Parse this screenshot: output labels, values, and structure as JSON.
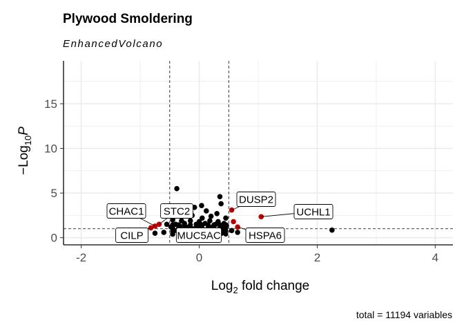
{
  "chart_data": {
    "type": "scatter",
    "title": "Plywood Smoldering",
    "subtitle": "EnhancedVolcano",
    "caption": "total = 11194 variables",
    "xlabel_main": "Log",
    "xlabel_sub": "2",
    "xlabel_tail": " fold change",
    "ylabel_pre": "−Log",
    "ylabel_sub": "10",
    "ylabel_var": "P",
    "xlim": [
      -2.3,
      4.3
    ],
    "ylim": [
      -0.8,
      19.8
    ],
    "x_ticks": [
      -2,
      0,
      2,
      4
    ],
    "x_tick_labels": [
      "-2",
      "0",
      "2",
      "4"
    ],
    "y_ticks": [
      0,
      5,
      10,
      15
    ],
    "y_tick_labels": [
      "0",
      "5",
      "10",
      "15"
    ],
    "fc_cutoff": 0.5,
    "p_cutoff_log": 1.0,
    "grid": true,
    "colors": {
      "ns": "#000000",
      "sig": "#c00000",
      "grid": "#ebebeb",
      "cutoff": "#000000"
    },
    "points_ns": [
      [
        -0.38,
        5.5
      ],
      [
        0.04,
        3.6
      ],
      [
        -0.08,
        3.4
      ],
      [
        0.12,
        3.0
      ],
      [
        -0.2,
        2.7
      ],
      [
        0.3,
        2.7
      ],
      [
        0.45,
        2.2
      ],
      [
        0.37,
        3.8
      ],
      [
        0.35,
        4.6
      ],
      [
        -0.12,
        2.5
      ],
      [
        0.2,
        2.4
      ],
      [
        0.05,
        2.2
      ],
      [
        -0.45,
        2.0
      ],
      [
        -0.3,
        1.9
      ],
      [
        -0.15,
        1.9
      ],
      [
        0.0,
        1.8
      ],
      [
        0.18,
        1.9
      ],
      [
        0.32,
        1.8
      ],
      [
        0.42,
        1.6
      ],
      [
        -0.4,
        1.5
      ],
      [
        -0.25,
        1.6
      ],
      [
        -0.05,
        1.5
      ],
      [
        0.1,
        1.6
      ],
      [
        0.28,
        1.5
      ],
      [
        0.46,
        1.4
      ],
      [
        -0.48,
        1.2
      ],
      [
        -0.33,
        1.3
      ],
      [
        -0.18,
        1.2
      ],
      [
        0.02,
        1.3
      ],
      [
        0.22,
        1.2
      ],
      [
        0.4,
        1.1
      ],
      [
        -0.35,
        1.0
      ],
      [
        -0.1,
        1.0
      ],
      [
        0.15,
        1.0
      ],
      [
        0.33,
        0.9
      ],
      [
        -0.42,
        0.8
      ],
      [
        -0.2,
        0.8
      ],
      [
        0.07,
        0.8
      ],
      [
        0.27,
        0.7
      ],
      [
        0.44,
        0.8
      ],
      [
        -0.28,
        0.6
      ],
      [
        0.0,
        0.6
      ],
      [
        0.2,
        0.6
      ],
      [
        0.38,
        0.5
      ],
      [
        -0.45,
        0.4
      ],
      [
        -0.12,
        0.4
      ],
      [
        0.12,
        0.4
      ],
      [
        0.3,
        0.3
      ],
      [
        -0.6,
        0.6
      ],
      [
        -0.75,
        0.5
      ],
      [
        0.65,
        0.6
      ],
      [
        0.55,
        0.8
      ],
      [
        2.25,
        0.85
      ],
      [
        -0.55,
        1.5
      ]
    ],
    "points_sig": [
      [
        -0.68,
        1.5
      ],
      [
        -0.75,
        1.3
      ],
      [
        -0.82,
        1.1
      ],
      [
        0.55,
        3.1
      ],
      [
        0.58,
        1.8
      ],
      [
        0.65,
        1.2
      ],
      [
        1.05,
        2.35
      ]
    ],
    "labels": [
      {
        "text": "CHAC1",
        "x": -0.75,
        "y": 1.3
      },
      {
        "text": "STC2",
        "x": -0.68,
        "y": 1.5
      },
      {
        "text": "CILP",
        "x": -0.82,
        "y": 1.1
      },
      {
        "text": "MUC5AC",
        "x": -0.45,
        "y": 1.0
      },
      {
        "text": "DUSP2",
        "x": 0.55,
        "y": 3.1
      },
      {
        "text": "UCHL1",
        "x": 1.05,
        "y": 2.35
      },
      {
        "text": "HSPA6",
        "x": 0.65,
        "y": 1.2
      }
    ]
  }
}
